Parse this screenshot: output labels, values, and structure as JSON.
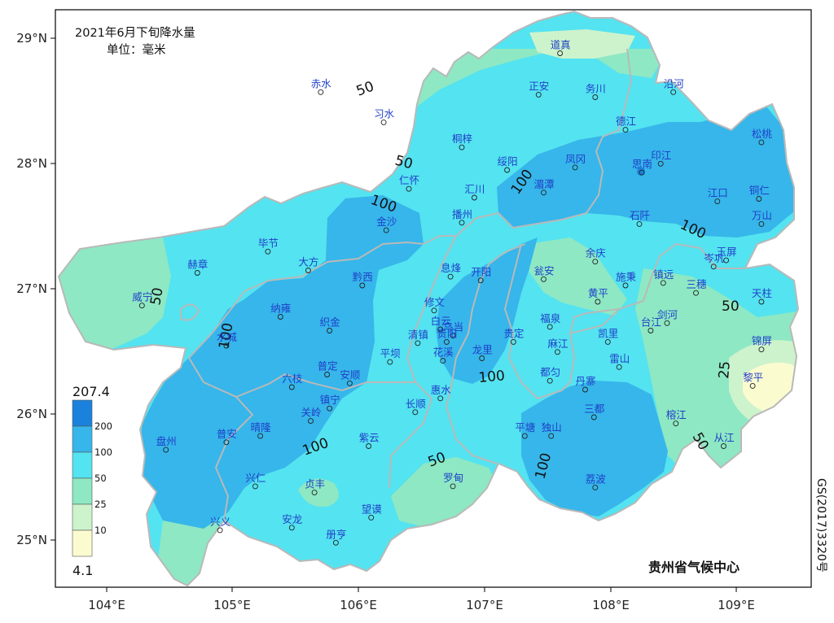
{
  "title": "2021年6月下旬降水量",
  "unit": "单位：毫米",
  "credit": "贵州省气候中心",
  "map_approval_no": "GS(2017)3320号",
  "colors": {
    "c_lt10": "#fbfbd0",
    "c_10_25": "#cdf3cc",
    "c_25_50": "#8ee8c3",
    "c_50_100": "#54e3f0",
    "c_100_200": "#36b6ea",
    "c_gt200": "#1a82dc",
    "boundary": "#b9b9b9",
    "station_text": "#1f3fc8"
  },
  "axes": {
    "lon_ticks": [
      "104°E",
      "105°E",
      "106°E",
      "107°E",
      "108°E",
      "109°E"
    ],
    "lat_ticks": [
      "29°N",
      "28°N",
      "27°N",
      "26°N",
      "25°N"
    ]
  },
  "legend": {
    "max": "207.4",
    "min": "4.1",
    "levels": [
      "200",
      "100",
      "50",
      "25",
      "10"
    ]
  },
  "contour_labels": [
    "50",
    "50",
    "100",
    "100",
    "100",
    "100",
    "100",
    "100",
    "100",
    "50",
    "50",
    "50",
    "25",
    "50"
  ],
  "stations": [
    {
      "name": "道真",
      "lon": 107.6,
      "lat": 28.88
    },
    {
      "name": "赤水",
      "lon": 105.7,
      "lat": 28.57
    },
    {
      "name": "习水",
      "lon": 106.2,
      "lat": 28.33
    },
    {
      "name": "正安",
      "lon": 107.43,
      "lat": 28.55
    },
    {
      "name": "务川",
      "lon": 107.88,
      "lat": 28.53
    },
    {
      "name": "沿河",
      "lon": 108.5,
      "lat": 28.57
    },
    {
      "name": "桐梓",
      "lon": 106.82,
      "lat": 28.13
    },
    {
      "name": "德江",
      "lon": 108.12,
      "lat": 28.27
    },
    {
      "name": "松桃",
      "lon": 109.2,
      "lat": 28.17
    },
    {
      "name": "仁怀",
      "lon": 106.4,
      "lat": 27.8
    },
    {
      "name": "绥阳",
      "lon": 107.18,
      "lat": 27.95
    },
    {
      "name": "凤冈",
      "lon": 107.72,
      "lat": 27.97
    },
    {
      "name": "思南",
      "lon": 108.25,
      "lat": 27.93
    },
    {
      "name": "印江",
      "lon": 108.4,
      "lat": 28.0
    },
    {
      "name": "汇川",
      "lon": 106.92,
      "lat": 27.73
    },
    {
      "name": "湄潭",
      "lon": 107.47,
      "lat": 27.77
    },
    {
      "name": "江口",
      "lon": 108.85,
      "lat": 27.7
    },
    {
      "name": "铜仁",
      "lon": 109.18,
      "lat": 27.72
    },
    {
      "name": "播州",
      "lon": 106.82,
      "lat": 27.53
    },
    {
      "name": "金沙",
      "lon": 106.22,
      "lat": 27.47
    },
    {
      "name": "石阡",
      "lon": 108.23,
      "lat": 27.52
    },
    {
      "name": "万山",
      "lon": 109.2,
      "lat": 27.52
    },
    {
      "name": "毕节",
      "lon": 105.28,
      "lat": 27.3
    },
    {
      "name": "大方",
      "lon": 105.6,
      "lat": 27.15
    },
    {
      "name": "赫章",
      "lon": 104.72,
      "lat": 27.13
    },
    {
      "name": "息烽",
      "lon": 106.73,
      "lat": 27.1
    },
    {
      "name": "开阳",
      "lon": 106.97,
      "lat": 27.07
    },
    {
      "name": "瓮安",
      "lon": 107.47,
      "lat": 27.08
    },
    {
      "name": "余庆",
      "lon": 107.88,
      "lat": 27.22
    },
    {
      "name": "施秉",
      "lon": 108.12,
      "lat": 27.03
    },
    {
      "name": "镇远",
      "lon": 108.42,
      "lat": 27.05
    },
    {
      "name": "岑巩",
      "lon": 108.82,
      "lat": 27.18
    },
    {
      "name": "玉屏",
      "lon": 108.92,
      "lat": 27.23
    },
    {
      "name": "三穗",
      "lon": 108.68,
      "lat": 26.97
    },
    {
      "name": "黔西",
      "lon": 106.03,
      "lat": 27.03
    },
    {
      "name": "威宁",
      "lon": 104.28,
      "lat": 26.87
    },
    {
      "name": "纳雍",
      "lon": 105.38,
      "lat": 26.78
    },
    {
      "name": "修文",
      "lon": 106.6,
      "lat": 26.83
    },
    {
      "name": "黄平",
      "lon": 107.9,
      "lat": 26.9
    },
    {
      "name": "天柱",
      "lon": 109.2,
      "lat": 26.9
    },
    {
      "name": "织金",
      "lon": 105.77,
      "lat": 26.67
    },
    {
      "name": "白云",
      "lon": 106.65,
      "lat": 26.68
    },
    {
      "name": "乌当",
      "lon": 106.75,
      "lat": 26.63
    },
    {
      "name": "福泉",
      "lon": 107.52,
      "lat": 26.7
    },
    {
      "name": "台江",
      "lon": 108.32,
      "lat": 26.67
    },
    {
      "name": "剑河",
      "lon": 108.45,
      "lat": 26.73
    },
    {
      "name": "清镇",
      "lon": 106.47,
      "lat": 26.57
    },
    {
      "name": "贵阳",
      "lon": 106.7,
      "lat": 26.58
    },
    {
      "name": "贵定",
      "lon": 107.23,
      "lat": 26.58
    },
    {
      "name": "凯里",
      "lon": 107.98,
      "lat": 26.58
    },
    {
      "name": "锦屏",
      "lon": 109.2,
      "lat": 26.52
    },
    {
      "name": "水城",
      "lon": 104.95,
      "lat": 26.55
    },
    {
      "name": "花溪",
      "lon": 106.67,
      "lat": 26.43
    },
    {
      "name": "龙里",
      "lon": 106.98,
      "lat": 26.45
    },
    {
      "name": "麻江",
      "lon": 107.58,
      "lat": 26.5
    },
    {
      "name": "雷山",
      "lon": 108.07,
      "lat": 26.38
    },
    {
      "name": "平坝",
      "lon": 106.25,
      "lat": 26.42
    },
    {
      "name": "普定",
      "lon": 105.75,
      "lat": 26.32
    },
    {
      "name": "安顺",
      "lon": 105.93,
      "lat": 26.25
    },
    {
      "name": "都匀",
      "lon": 107.52,
      "lat": 26.27
    },
    {
      "name": "黎平",
      "lon": 109.13,
      "lat": 26.23
    },
    {
      "name": "六枝",
      "lon": 105.47,
      "lat": 26.22
    },
    {
      "name": "惠水",
      "lon": 106.65,
      "lat": 26.13
    },
    {
      "name": "丹寨",
      "lon": 107.8,
      "lat": 26.2
    },
    {
      "name": "镇宁",
      "lon": 105.77,
      "lat": 26.05
    },
    {
      "name": "长顺",
      "lon": 106.45,
      "lat": 26.02
    },
    {
      "name": "关岭",
      "lon": 105.62,
      "lat": 25.95
    },
    {
      "name": "三都",
      "lon": 107.87,
      "lat": 25.98
    },
    {
      "name": "榕江",
      "lon": 108.52,
      "lat": 25.93
    },
    {
      "name": "盘州",
      "lon": 104.47,
      "lat": 25.72
    },
    {
      "name": "普安",
      "lon": 104.95,
      "lat": 25.78
    },
    {
      "name": "晴隆",
      "lon": 105.22,
      "lat": 25.83
    },
    {
      "name": "紫云",
      "lon": 106.08,
      "lat": 25.75
    },
    {
      "name": "平塘",
      "lon": 107.32,
      "lat": 25.83
    },
    {
      "name": "独山",
      "lon": 107.53,
      "lat": 25.83
    },
    {
      "name": "从江",
      "lon": 108.9,
      "lat": 25.75
    },
    {
      "name": "兴仁",
      "lon": 105.18,
      "lat": 25.43
    },
    {
      "name": "贞丰",
      "lon": 105.65,
      "lat": 25.38
    },
    {
      "name": "罗甸",
      "lon": 106.75,
      "lat": 25.43
    },
    {
      "name": "荔波",
      "lon": 107.88,
      "lat": 25.42
    },
    {
      "name": "望谟",
      "lon": 106.1,
      "lat": 25.18
    },
    {
      "name": "安龙",
      "lon": 105.47,
      "lat": 25.1
    },
    {
      "name": "兴义",
      "lon": 104.9,
      "lat": 25.08
    },
    {
      "name": "册亨",
      "lon": 105.82,
      "lat": 24.98
    }
  ]
}
